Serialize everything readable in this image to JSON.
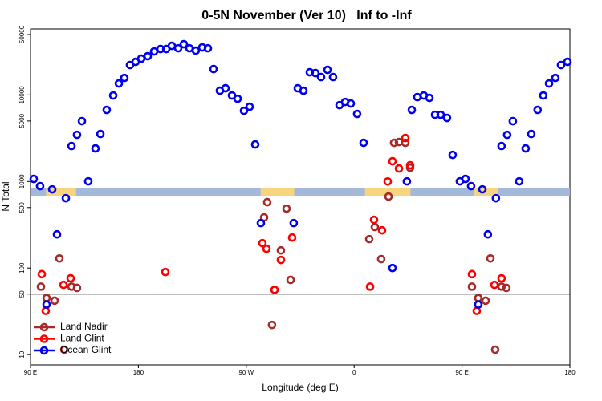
{
  "chart_data": {
    "type": "scatter",
    "title": "0-5N November (Ver 10)   Inf to -Inf",
    "x_label": "Longitude (deg E)",
    "y_label": "N Total",
    "log_y": true,
    "legend": "bottom-left",
    "xlim": [
      90,
      540
    ],
    "xticks": [
      {
        "value": 90,
        "label": "90 E"
      },
      180,
      {
        "value": 270,
        "label": "90 W"
      },
      {
        "value": 360,
        "label": "0"
      },
      {
        "value": 450,
        "label": "90 E"
      },
      {
        "value": 540,
        "label": "180"
      }
    ],
    "ylim": [
      7.6,
      58000
    ],
    "yticks": [
      10,
      50,
      100,
      500,
      1000,
      5000,
      10000,
      50000
    ],
    "reference_line": 50,
    "land_ranges": [
      [
        103,
        128
      ],
      [
        282,
        310
      ],
      [
        369,
        407
      ],
      [
        460,
        480
      ]
    ],
    "series": [
      {
        "name": "Land Nadir",
        "color": "#a52a2a",
        "x": [
          98.7,
          103.4,
          110.1,
          114.1,
          118.2,
          124.2,
          128.8,
          284.9,
          287.5,
          291.5,
          298.9,
          303.6,
          307.0,
          372.6,
          377.3,
          382.6,
          388.7,
          393.3,
          397.4,
          402.7,
          406.7,
          458.3,
          463.6,
          469.7,
          473.7,
          477.7,
          483.0,
          487.0
        ],
        "values": [
          61,
          45,
          42,
          129,
          11.4,
          61,
          59,
          385,
          577,
          22,
          160,
          486,
          73,
          216,
          298,
          127,
          670,
          2800,
          2860,
          2800,
          1443,
          61,
          45,
          42,
          129,
          11.4,
          61,
          59
        ]
      },
      {
        "name": "Land Glint",
        "color": "#ff0000",
        "x": [
          99.4,
          102.7,
          117.5,
          123.5,
          202.5,
          283.5,
          286.9,
          293.6,
          298.9,
          308.3,
          373.3,
          376.6,
          383.3,
          388.0,
          392.0,
          397.4,
          402.7,
          406.7,
          458.3,
          462.3,
          477.1,
          483.0
        ],
        "values": [
          85,
          32,
          64,
          76,
          90,
          194,
          167,
          56,
          124,
          225,
          61,
          361,
          273,
          1000,
          1713,
          1413,
          3180,
          1540,
          85,
          32,
          64,
          76
        ]
      },
      {
        "name": "Ocean Glint",
        "color": "#0000ee",
        "x": [
          92.7,
          98.0,
          103.4,
          108.1,
          112.1,
          119.5,
          124.2,
          128.8,
          132.9,
          138.2,
          144.2,
          148.3,
          153.6,
          159.0,
          163.7,
          168.3,
          173.0,
          177.7,
          182.4,
          187.8,
          193.1,
          198.5,
          203.2,
          207.9,
          213.2,
          217.9,
          222.6,
          227.9,
          233.3,
          238.0,
          242.7,
          248.0,
          252.7,
          258.1,
          262.8,
          268.1,
          272.8,
          277.5,
          282.2,
          309.6,
          313.0,
          317.7,
          323.0,
          327.7,
          332.4,
          337.8,
          342.4,
          347.8,
          352.5,
          357.2,
          362.5,
          367.9,
          392.0,
          404.0,
          408.1,
          412.7,
          418.1,
          422.8,
          427.5,
          432.2,
          437.5,
          442.2,
          448.2,
          452.9,
          457.6,
          463.6,
          467.0,
          471.6,
          478.3,
          483.0,
          487.7,
          492.4,
          497.7,
          503.1,
          507.8,
          513.1,
          517.8,
          522.6,
          527.9,
          532.6,
          538.0
        ],
        "values": [
          1071,
          884,
          38,
          811,
          245,
          641,
          2570,
          3460,
          4980,
          1004,
          2410,
          3540,
          6710,
          9860,
          13580,
          15740,
          22180,
          24150,
          26300,
          28050,
          31850,
          33960,
          33960,
          37000,
          34670,
          38630,
          34670,
          32570,
          35480,
          34670,
          19920,
          11200,
          11940,
          9860,
          9040,
          6560,
          7310,
          2680,
          331,
          331,
          11940,
          11200,
          18300,
          17900,
          16100,
          19500,
          16100,
          7620,
          8300,
          7960,
          6030,
          2800,
          100,
          1004,
          6710,
          9440,
          9860,
          9250,
          5900,
          5900,
          5420,
          2030,
          1004,
          1071,
          884,
          38,
          811,
          245,
          641,
          2570,
          3460,
          4980,
          1004,
          2410,
          3540,
          6710,
          9860,
          13580,
          15740,
          22180,
          24150
        ]
      }
    ]
  }
}
